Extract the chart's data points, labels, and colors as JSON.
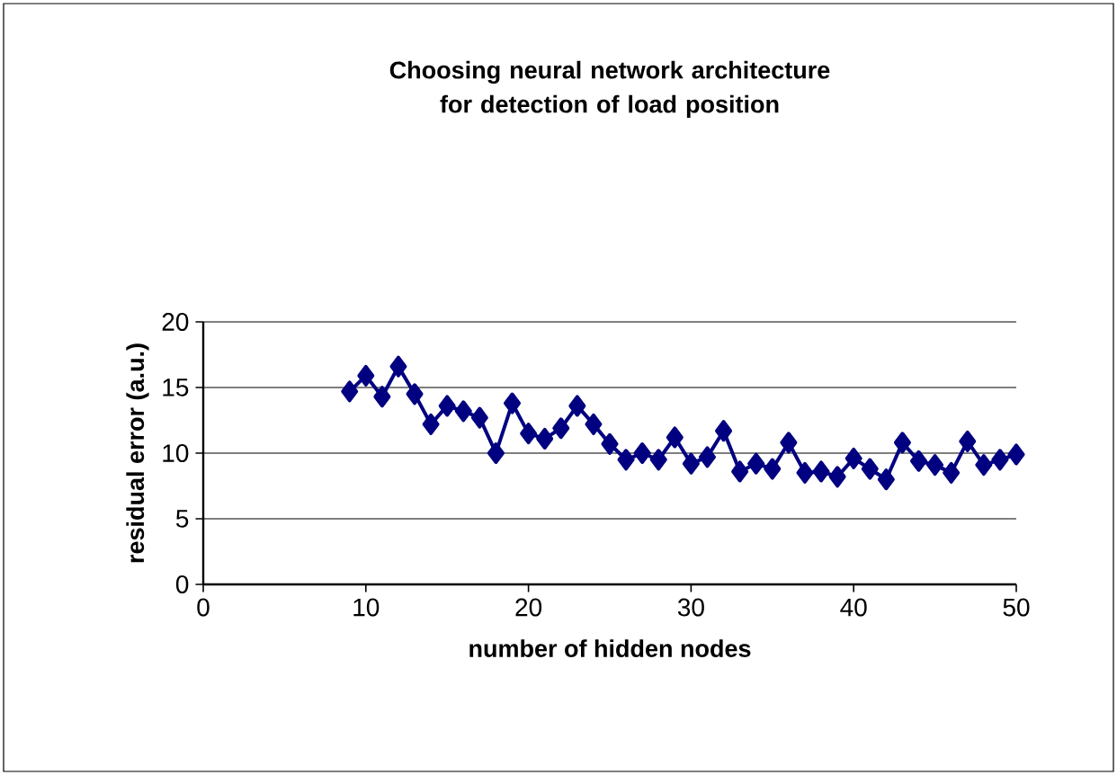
{
  "chart_data": {
    "type": "line",
    "title": "Choosing neural network architecture for detection of load position",
    "xlabel": "number of hidden nodes",
    "ylabel": "residual error (a.u.)",
    "x": [
      9,
      10,
      11,
      12,
      13,
      14,
      15,
      16,
      17,
      18,
      19,
      20,
      21,
      22,
      23,
      24,
      25,
      26,
      27,
      28,
      29,
      30,
      31,
      32,
      33,
      34,
      35,
      36,
      37,
      38,
      39,
      40,
      41,
      42,
      43,
      44,
      45,
      46,
      47,
      48,
      49,
      50
    ],
    "series": [
      {
        "color": "#000080",
        "values": [
          14.7,
          15.9,
          14.3,
          16.6,
          14.5,
          12.2,
          13.6,
          13.2,
          12.7,
          10.0,
          13.8,
          11.5,
          11.1,
          11.9,
          13.6,
          12.2,
          10.7,
          9.5,
          10.0,
          9.5,
          11.2,
          9.2,
          9.7,
          11.7,
          8.6,
          9.2,
          8.8,
          10.8,
          8.5,
          8.6,
          8.2,
          9.6,
          8.8,
          8.0,
          10.8,
          9.4,
          9.1,
          8.5,
          10.9,
          9.1,
          9.5,
          9.9
        ]
      }
    ],
    "xlim": [
      0,
      50
    ],
    "xticks": [
      0,
      10,
      20,
      30,
      40,
      50
    ],
    "ylim": [
      0,
      20
    ],
    "yticks": [
      0,
      5,
      10,
      15,
      20
    ],
    "grid": "y",
    "marker": "diamond",
    "line_style": "solid"
  }
}
